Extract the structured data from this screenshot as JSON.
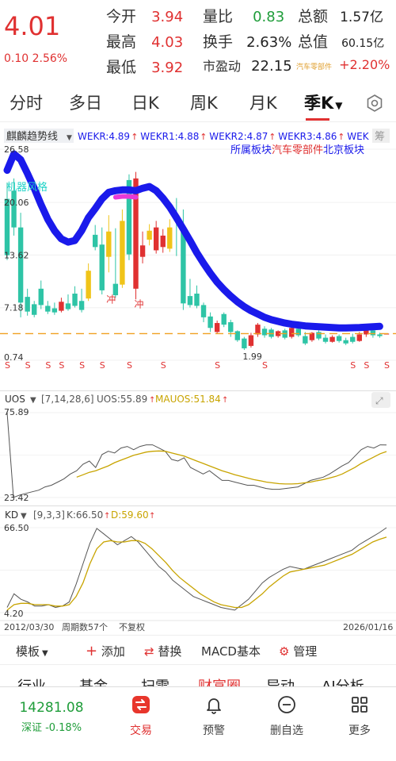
{
  "quote": {
    "price": "4.01",
    "change": "0.10 2.56%",
    "rows": [
      [
        {
          "label": "今开",
          "value": "3.94",
          "color": "red"
        },
        {
          "label": "量比",
          "value": "0.83",
          "color": "green"
        },
        {
          "label": "总额",
          "value": "1.57亿",
          "color": "dark"
        }
      ],
      [
        {
          "label": "最高",
          "value": "4.03",
          "color": "red"
        },
        {
          "label": "换手",
          "value": "2.63%",
          "color": "dark"
        },
        {
          "label": "总值",
          "value": "60.15亿",
          "color": "dark"
        }
      ],
      [
        {
          "label": "最低",
          "value": "3.92",
          "color": "red"
        },
        {
          "label": "市盈动",
          "value": "22.15",
          "color": "dark"
        },
        {
          "label": "汽车零部件",
          "value": "+2.20%",
          "color": "red"
        }
      ]
    ]
  },
  "period_tabs": [
    "分时",
    "多日",
    "日K",
    "周K",
    "月K",
    "季K"
  ],
  "main_chart": {
    "indicator_name": "麒麟趋势线",
    "legend": [
      "WEKR:4.89",
      "WEKR1:4.88",
      "WEKR2:4.87",
      "WEKR3:4.86",
      "WEK"
    ],
    "legend_more": "筹",
    "sector_note_prefix": "所属板块",
    "sector_note_sector": "汽车零部件",
    "sector_note_suffix": "北京板块",
    "watermark": "机器风格",
    "y_labels": [
      "26.58",
      "20.06",
      "13.62",
      "7.18",
      "0.74"
    ],
    "min_label": "1.99",
    "signal_labels": [
      "冲",
      "冲"
    ],
    "s_marker": "S",
    "ref_level": 4.0,
    "colors": {
      "up": "#e03131",
      "down": "#2ec4a6",
      "yellow": "#f0c419",
      "trend": "#1a1aeb",
      "ref": "#f0a020"
    }
  },
  "uos": {
    "title": "UOS",
    "params": "[7,14,28,6]",
    "uos_value": "UOS:55.89",
    "mauos_value": "MAUOS:51.84",
    "y_labels": [
      "75.89",
      "23.42"
    ]
  },
  "kd": {
    "title": "KD",
    "params": "[9,3,3]",
    "k_value": "K:66.50",
    "d_value": "D:59.60",
    "y_labels": [
      "66.50",
      "4.20"
    ],
    "start_date": "2012/03/30",
    "period_count": "周期数57个",
    "adjust": "不复权",
    "end_date": "2026/01/16"
  },
  "toolbar": {
    "template": "模板",
    "add": "添加",
    "replace": "替换",
    "macd": "MACD基本",
    "manage": "管理"
  },
  "sub_tabs": [
    "行业",
    "基金",
    "扫雷",
    "财富圈",
    "异动",
    "AI分析"
  ],
  "bottom_nav": {
    "index_value": "14281.08",
    "index_name": "深证 -0.18%",
    "trade": "交易",
    "alert": "预警",
    "delete": "删自选",
    "more": "更多"
  }
}
